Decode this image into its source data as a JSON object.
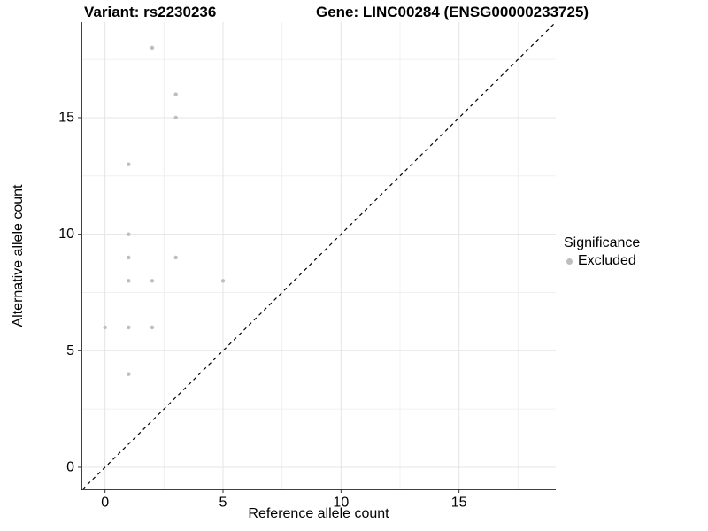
{
  "chart_data": {
    "type": "scatter",
    "title_left": "Variant: rs2230236",
    "title_right": "Gene: LINC00284 (ENSG00000233725)",
    "xlabel": "Reference allele count",
    "ylabel": "Alternative allele count",
    "xlim": [
      -1,
      19.1
    ],
    "ylim": [
      -0.95,
      19.1
    ],
    "x_major_ticks": [
      0,
      5,
      10,
      15
    ],
    "y_major_ticks": [
      0,
      5,
      10,
      15
    ],
    "x_minor_ticks": [
      2.5,
      7.5,
      12.5,
      17.5
    ],
    "y_minor_ticks": [
      2.5,
      7.5,
      12.5,
      17.5
    ],
    "grid": true,
    "identity_line": {
      "style": "dashed",
      "slope": 1,
      "intercept": 0
    },
    "series": [
      {
        "name": "Excluded",
        "color": "#bebebe",
        "points": [
          [
            2,
            18
          ],
          [
            3,
            16
          ],
          [
            3,
            15
          ],
          [
            1,
            13
          ],
          [
            1,
            10
          ],
          [
            1,
            9
          ],
          [
            3,
            9
          ],
          [
            1,
            8
          ],
          [
            2,
            8
          ],
          [
            5,
            8
          ],
          [
            0,
            6
          ],
          [
            1,
            6
          ],
          [
            2,
            6
          ],
          [
            1,
            4
          ]
        ]
      }
    ],
    "legend": {
      "title": "Significance",
      "position": "right",
      "items": [
        {
          "label": "Excluded",
          "color": "#bebebe"
        }
      ]
    },
    "colors": {
      "point": "#bebebe",
      "grid_major": "#e5e5e5",
      "grid_minor": "#f0f0f0",
      "axis_line": "#000000",
      "tick": "#333333",
      "text": "#000000",
      "identity_line": "#000000",
      "background": "#ffffff"
    }
  }
}
